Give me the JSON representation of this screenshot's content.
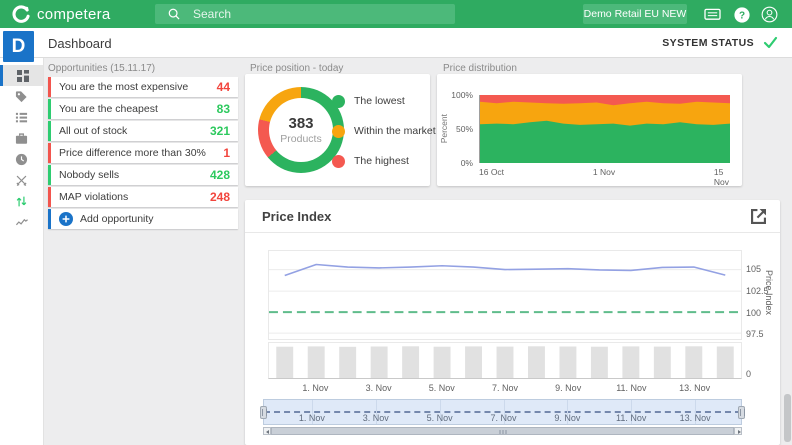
{
  "header": {
    "logo_text": "competera",
    "search_placeholder": "Search",
    "account_button": "Demo Retail EU NEW"
  },
  "titlebar": {
    "title": "Dashboard",
    "system_status": "SYSTEM STATUS"
  },
  "sidebar": {
    "workspace_initial": "D",
    "items": [
      {
        "id": "dashboard",
        "icon": "dashboard-grid-icon",
        "selected": true
      },
      {
        "id": "tags",
        "icon": "tag-icon",
        "selected": false
      },
      {
        "id": "lists",
        "icon": "list-icon",
        "selected": false
      },
      {
        "id": "portfolio",
        "icon": "briefcase-icon",
        "selected": false
      },
      {
        "id": "history",
        "icon": "clock-icon",
        "selected": false
      },
      {
        "id": "competitors",
        "icon": "crossed-swords-icon",
        "selected": false
      },
      {
        "id": "repricing",
        "icon": "up-down-arrows-icon",
        "selected": false
      },
      {
        "id": "analytics",
        "icon": "trend-line-icon",
        "selected": false
      }
    ]
  },
  "opportunities": {
    "title": "Opportunities (15.11.17)",
    "items": [
      {
        "label": "You are the most expensive",
        "value": "44",
        "status": "negative"
      },
      {
        "label": "You are the cheapest",
        "value": "83",
        "status": "positive"
      },
      {
        "label": "All out of stock",
        "value": "321",
        "status": "positive"
      },
      {
        "label": "Price difference more than 30%",
        "value": "1",
        "status": "negative"
      },
      {
        "label": "Nobody sells",
        "value": "428",
        "status": "positive"
      },
      {
        "label": "MAP violations",
        "value": "248",
        "status": "negative"
      }
    ],
    "add_label": "Add opportunity"
  },
  "colors": {
    "brand_green": "#2fab61",
    "brand_green_light": "#4cb97a",
    "accent_blue": "#1a73c8",
    "negative_accent": "#f2554e",
    "negative_text": "#f2453d",
    "positive_accent": "#2ecc71",
    "positive_text": "#2dc95e",
    "status_check_green": "#2ecc71"
  },
  "chart_data": [
    {
      "id": "price_position",
      "type": "pie",
      "title": "Price position - today",
      "center_value": "383",
      "center_label": "Products",
      "slices_clockwise_from_top": [
        {
          "label": "The lowest",
          "value_pct": 64,
          "color": "#2cb35f"
        },
        {
          "label": "The highest",
          "value_pct": 15,
          "color": "#f45950"
        },
        {
          "label": "Within the market",
          "value_pct": 21,
          "color": "#f7a50f"
        }
      ],
      "legend": [
        {
          "label": "The lowest",
          "color": "#2cb35f"
        },
        {
          "label": "Within the market",
          "color": "#f7a50f"
        },
        {
          "label": "The highest",
          "color": "#f45950"
        }
      ]
    },
    {
      "id": "price_distribution",
      "type": "area",
      "title": "Price distribution",
      "ylabel": "Percent",
      "yticks": [
        "100%",
        "50%",
        "0%"
      ],
      "xticks": [
        "16 Oct",
        "1 Nov",
        "15 Nov"
      ],
      "x_range": [
        "16 Oct",
        "15 Nov"
      ],
      "ylim": [
        0,
        100
      ],
      "legend_position": "none",
      "grid": false,
      "series_stacked_pct": [
        {
          "name": "The lowest",
          "color": "#2cb35f",
          "top_boundary": [
            57,
            58,
            57,
            60,
            62,
            58,
            56,
            57,
            58,
            55,
            58,
            57,
            60,
            57,
            56,
            58
          ]
        },
        {
          "name": "Within the market",
          "color": "#f7a50f",
          "top_boundary": [
            90,
            88,
            90,
            89,
            88,
            87,
            88,
            89,
            85,
            88,
            90,
            88,
            87,
            90,
            89,
            88
          ]
        },
        {
          "name": "The highest",
          "color": "#f45950",
          "top_boundary": [
            100,
            100,
            100,
            100,
            100,
            100,
            100,
            100,
            100,
            100,
            100,
            100,
            100,
            100,
            100,
            100
          ]
        }
      ]
    },
    {
      "id": "price_index",
      "type": "line+bar",
      "title": "Price Index",
      "ylabel_right": "Price Index",
      "yticks_right": [
        "105",
        "102.5",
        "100",
        "97.5"
      ],
      "ytick_values": [
        105,
        102.5,
        100,
        97.5
      ],
      "bar_ytick": "0",
      "baseline_value": 100,
      "baseline_color": "#5fbc8b",
      "x_labels": [
        "1. Nov",
        "3. Nov",
        "5. Nov",
        "7. Nov",
        "9. Nov",
        "11. Nov",
        "13. Nov"
      ],
      "x_label_day_indices": [
        1,
        3,
        5,
        7,
        9,
        11,
        13
      ],
      "line_series": {
        "name": "Price Index",
        "color": "#93a1e3",
        "values": [
          104.3,
          105.6,
          105.3,
          105.2,
          105.3,
          105.45,
          105.3,
          105.0,
          105.05,
          105.1,
          104.95,
          104.9,
          105.25,
          105.3,
          104.35
        ]
      },
      "bar_series": {
        "color": "#e1e1e1",
        "values": [
          376,
          379,
          374,
          378,
          380,
          376,
          379,
          377,
          381,
          378,
          376,
          379,
          377,
          380,
          378
        ],
        "ymax": 420
      },
      "navigator": {
        "x_labels": [
          "1. Nov",
          "3. Nov",
          "5. Nov",
          "7. Nov",
          "9. Nov",
          "11. Nov",
          "13. Nov"
        ]
      }
    }
  ]
}
